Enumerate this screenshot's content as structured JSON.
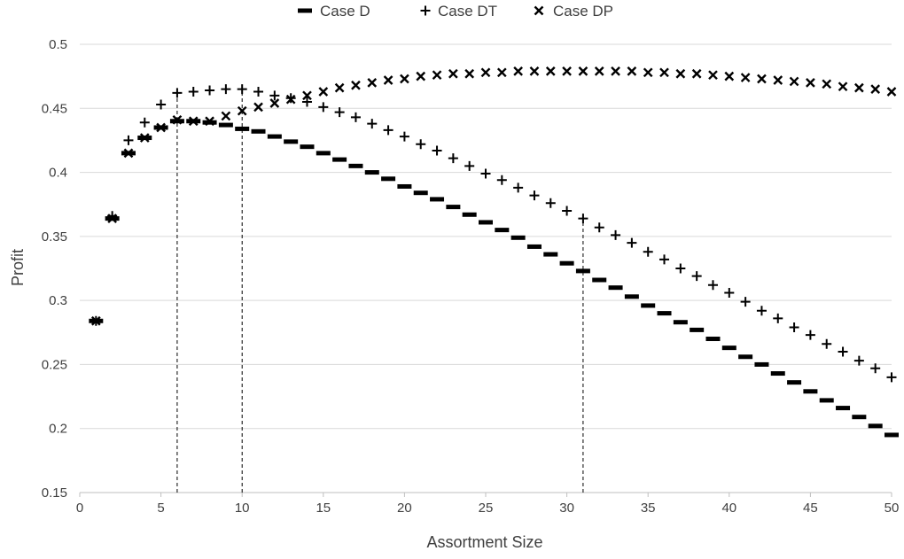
{
  "chart_data": {
    "type": "scatter",
    "title": "",
    "xlabel": "Assortment Size",
    "ylabel": "Profit",
    "xlim": [
      0,
      50
    ],
    "ylim": [
      0.15,
      0.5
    ],
    "x_ticks": [
      0,
      5,
      10,
      15,
      20,
      25,
      30,
      35,
      40,
      45,
      50
    ],
    "y_ticks": [
      0.15,
      0.2,
      0.25,
      0.3,
      0.35,
      0.4,
      0.45,
      0.5
    ],
    "y_tick_labels": [
      "0.15",
      "0.2",
      "0.25",
      "0.3",
      "0.35",
      "0.4",
      "0.45",
      "0.5"
    ],
    "grid": "horizontal",
    "legend_position": "top",
    "reference_lines_x": [
      6,
      10,
      31
    ],
    "x": [
      1,
      2,
      3,
      4,
      5,
      6,
      7,
      8,
      9,
      10,
      11,
      12,
      13,
      14,
      15,
      16,
      17,
      18,
      19,
      20,
      21,
      22,
      23,
      24,
      25,
      26,
      27,
      28,
      29,
      30,
      31,
      32,
      33,
      34,
      35,
      36,
      37,
      38,
      39,
      40,
      41,
      42,
      43,
      44,
      45,
      46,
      47,
      48,
      49,
      50
    ],
    "series": [
      {
        "name": "Case D",
        "marker": "dash",
        "values": [
          0.284,
          0.364,
          0.415,
          0.427,
          0.435,
          0.44,
          0.44,
          0.439,
          0.437,
          0.434,
          0.432,
          0.428,
          0.424,
          0.42,
          0.415,
          0.41,
          0.405,
          0.4,
          0.395,
          0.389,
          0.384,
          0.379,
          0.373,
          0.367,
          0.361,
          0.355,
          0.349,
          0.342,
          0.336,
          0.329,
          0.323,
          0.316,
          0.31,
          0.303,
          0.296,
          0.29,
          0.283,
          0.277,
          0.27,
          0.263,
          0.256,
          0.25,
          0.243,
          0.236,
          0.229,
          0.222,
          0.216,
          0.209,
          0.202,
          0.195
        ]
      },
      {
        "name": "Case DT",
        "marker": "plus",
        "values": [
          0.284,
          0.366,
          0.425,
          0.439,
          0.453,
          0.462,
          0.463,
          0.464,
          0.465,
          0.465,
          0.463,
          0.46,
          0.458,
          0.455,
          0.451,
          0.447,
          0.443,
          0.438,
          0.433,
          0.428,
          0.422,
          0.417,
          0.411,
          0.405,
          0.399,
          0.394,
          0.388,
          0.382,
          0.376,
          0.37,
          0.364,
          0.357,
          0.351,
          0.345,
          0.338,
          0.332,
          0.325,
          0.319,
          0.312,
          0.306,
          0.299,
          0.292,
          0.286,
          0.279,
          0.273,
          0.266,
          0.26,
          0.253,
          0.247,
          0.24
        ]
      },
      {
        "name": "Case DP",
        "marker": "cross",
        "values": [
          0.284,
          0.364,
          0.415,
          0.427,
          0.435,
          0.441,
          0.44,
          0.44,
          0.444,
          0.448,
          0.451,
          0.454,
          0.457,
          0.46,
          0.463,
          0.466,
          0.468,
          0.47,
          0.472,
          0.473,
          0.475,
          0.476,
          0.477,
          0.477,
          0.478,
          0.478,
          0.479,
          0.479,
          0.479,
          0.479,
          0.479,
          0.479,
          0.479,
          0.479,
          0.478,
          0.478,
          0.477,
          0.477,
          0.476,
          0.475,
          0.474,
          0.473,
          0.472,
          0.471,
          0.47,
          0.469,
          0.467,
          0.466,
          0.465,
          0.463
        ]
      }
    ]
  }
}
